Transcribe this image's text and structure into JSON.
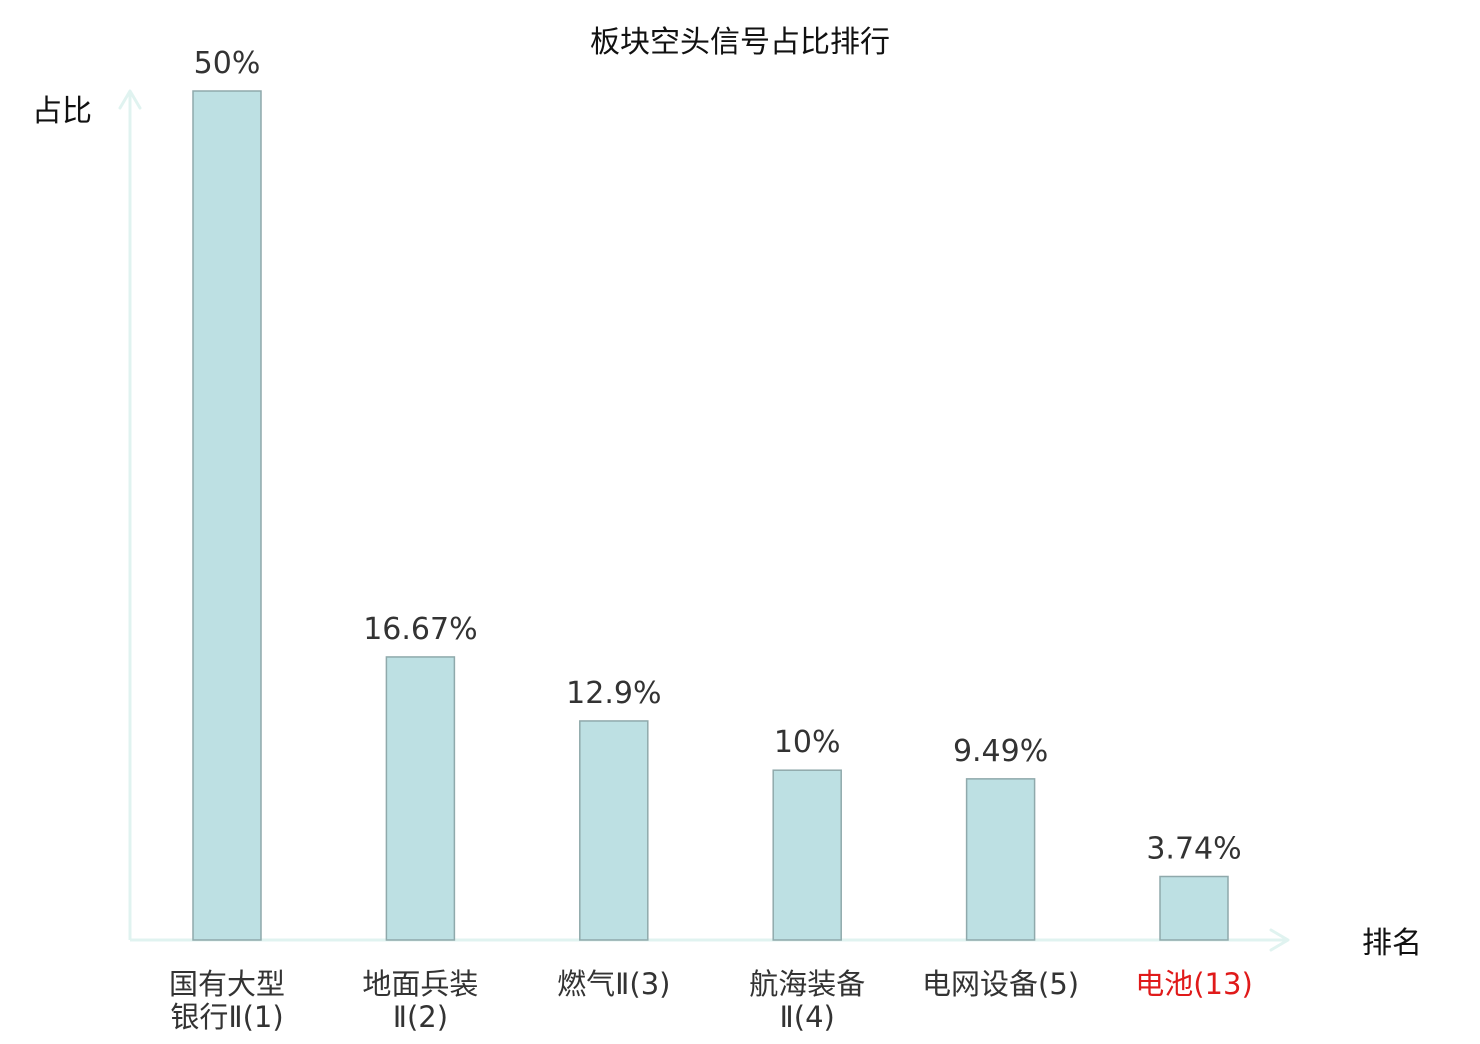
{
  "chart_data": {
    "type": "bar",
    "title": "板块空头信号占比排行",
    "ylabel": "占比",
    "xlabel": "排名",
    "ylim": [
      0,
      50
    ],
    "grid": false,
    "legend": "none",
    "categories": [
      {
        "lines": [
          "国有大型",
          "银行Ⅱ(1)"
        ],
        "highlight": false
      },
      {
        "lines": [
          "地面兵装",
          "Ⅱ(2)"
        ],
        "highlight": false
      },
      {
        "lines": [
          "燃气Ⅱ(3)"
        ],
        "highlight": false
      },
      {
        "lines": [
          "航海装备",
          "Ⅱ(4)"
        ],
        "highlight": false
      },
      {
        "lines": [
          "电网设备(5)"
        ],
        "highlight": false
      },
      {
        "lines": [
          "电池(13)"
        ],
        "highlight": true
      }
    ],
    "values": [
      50,
      16.67,
      12.9,
      10,
      9.49,
      3.74
    ],
    "value_labels": [
      "50%",
      "16.67%",
      "12.9%",
      "10%",
      "9.49%",
      "3.74%"
    ],
    "colors": {
      "bar_fill": "#bde0e3",
      "bar_stroke": "#8fa9ab",
      "axis": "#e0f3f0",
      "text": "#333333",
      "title": "#111111",
      "highlight_text": "#e01a1a"
    }
  }
}
